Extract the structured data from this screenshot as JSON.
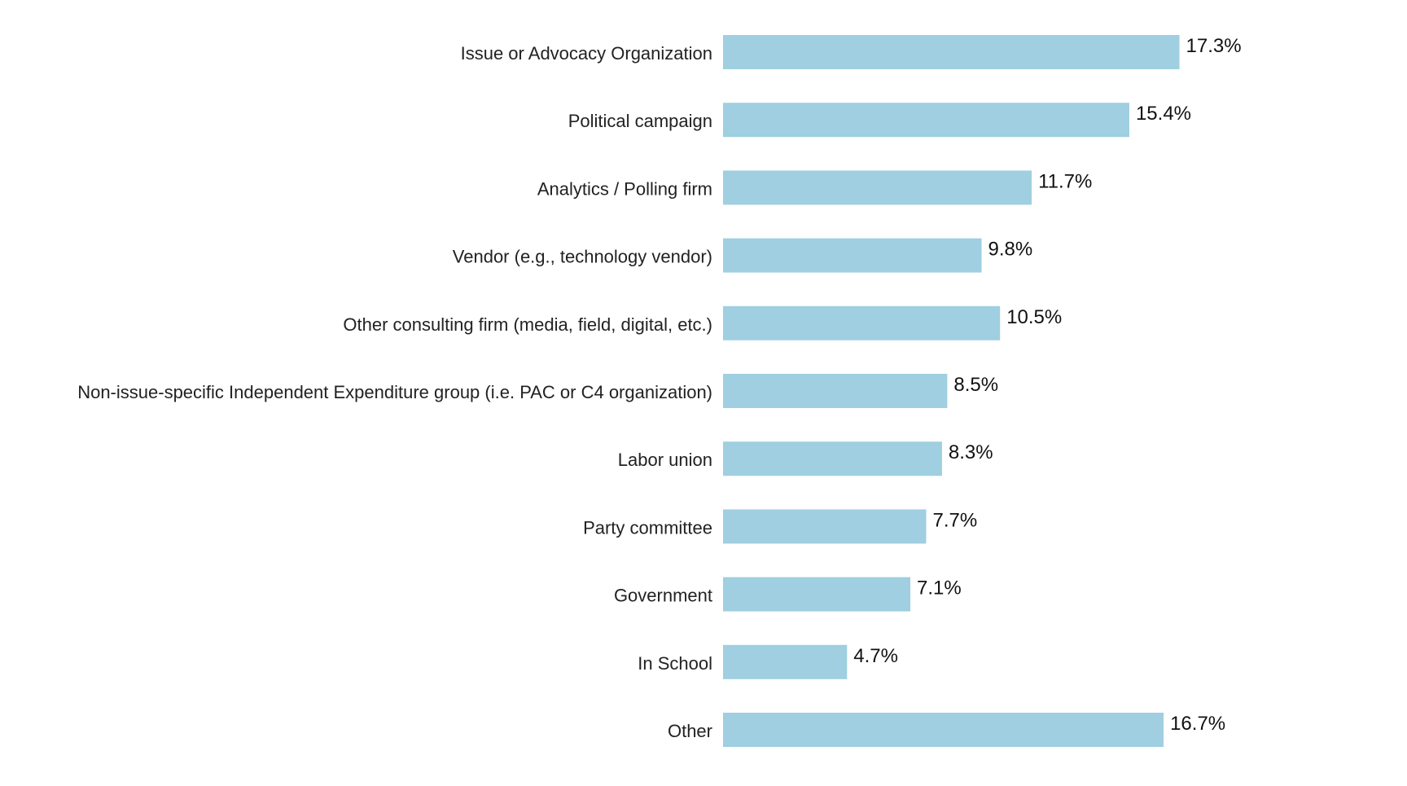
{
  "chart_data": {
    "type": "bar",
    "orientation": "horizontal",
    "categories": [
      "Issue or Advocacy Organization",
      "Political campaign",
      "Analytics / Polling firm",
      "Vendor (e.g., technology vendor)",
      "Other consulting firm (media, field, digital, etc.)",
      "Non-issue-specific Independent Expenditure group (i.e. PAC or C4 organization)",
      "Labor union",
      "Party committee",
      "Government",
      "In School",
      "Other"
    ],
    "values": [
      17.3,
      15.4,
      11.7,
      9.8,
      10.5,
      8.5,
      8.3,
      7.7,
      7.1,
      4.7,
      16.7
    ],
    "value_labels": [
      "17.3%",
      "15.4%",
      "11.7%",
      "9.8%",
      "10.5%",
      "8.5%",
      "8.3%",
      "7.7%",
      "7.1%",
      "4.7%",
      "16.7%"
    ],
    "title": "",
    "xlabel": "",
    "ylabel": "",
    "xlim": [
      0,
      20
    ],
    "grid": false,
    "legend": "none",
    "bar_color": "#9fcfe0"
  }
}
